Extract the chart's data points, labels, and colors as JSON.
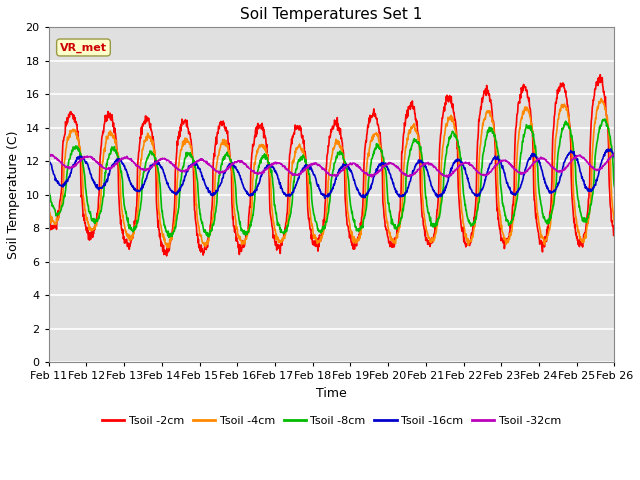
{
  "title": "Soil Temperatures Set 1",
  "xlabel": "Time",
  "ylabel": "Soil Temperature (C)",
  "ylim": [
    0,
    20
  ],
  "yticks": [
    0,
    2,
    4,
    6,
    8,
    10,
    12,
    14,
    16,
    18,
    20
  ],
  "x_labels": [
    "Feb 11",
    "Feb 12",
    "Feb 13",
    "Feb 14",
    "Feb 15",
    "Feb 16",
    "Feb 17",
    "Feb 18",
    "Feb 19",
    "Feb 20",
    "Feb 21",
    "Feb 22",
    "Feb 23",
    "Feb 24",
    "Feb 25",
    "Feb 26"
  ],
  "annotation_text": "VR_met",
  "annotation_color": "#cc0000",
  "annotation_bg": "#ffffcc",
  "background_color": "#e0e0e0",
  "line_colors": [
    "#ff0000",
    "#ff8800",
    "#00bb00",
    "#0000cc",
    "#bb00bb"
  ],
  "line_labels": [
    "Tsoil -2cm",
    "Tsoil -4cm",
    "Tsoil -8cm",
    "Tsoil -16cm",
    "Tsoil -32cm"
  ],
  "line_width": 1.2,
  "n_points": 1440,
  "days": 15
}
